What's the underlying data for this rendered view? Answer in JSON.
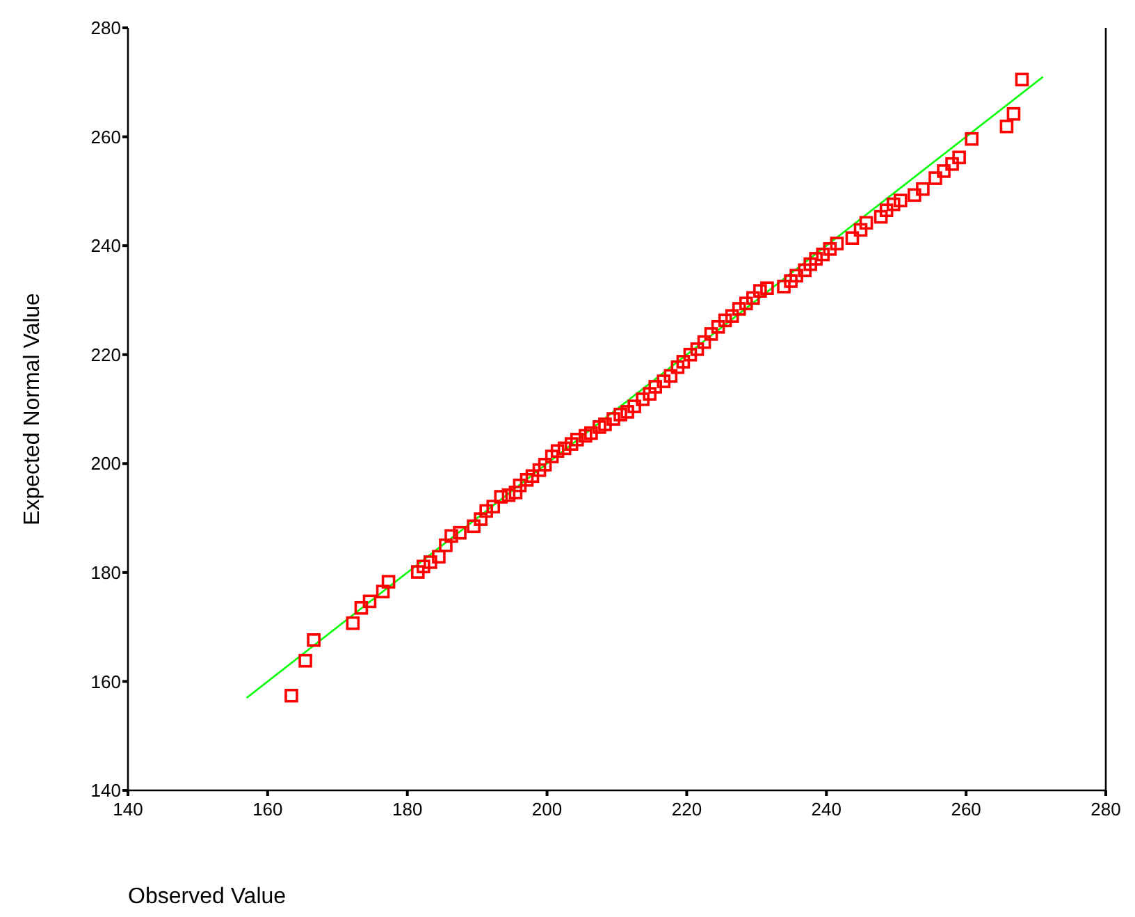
{
  "chart_data": {
    "type": "scatter",
    "xlabel": "Observed Value",
    "ylabel": "Expected Normal Value",
    "xlim": [
      140,
      280
    ],
    "ylim": [
      140,
      280
    ],
    "xticks": [
      140,
      160,
      180,
      200,
      220,
      240,
      260,
      280
    ],
    "yticks": [
      140,
      160,
      180,
      200,
      220,
      240,
      260,
      280
    ],
    "grid": false,
    "legend": false,
    "series": [
      {
        "type": "line",
        "color": "#00ff00",
        "marker": "none",
        "x": [
          157,
          271
        ],
        "values": [
          157,
          271
        ]
      },
      {
        "color": "#ff0000",
        "marker": "square",
        "x": [
          163.4,
          165.4,
          166.6,
          172.2,
          173.4,
          174.6,
          176.5,
          177.3,
          181.5,
          182.3,
          183.3,
          184.5,
          185.5,
          186.3,
          187.5,
          189.5,
          190.5,
          191.3,
          192.3,
          193.4,
          194.5,
          195.5,
          196.1,
          197.1,
          197.9,
          198.9,
          199.7,
          200.7,
          201.5,
          202.5,
          203.5,
          204.3,
          205.5,
          206.3,
          207.5,
          208.3,
          209.5,
          210.5,
          211.5,
          212.5,
          213.7,
          214.7,
          215.5,
          216.7,
          217.7,
          218.7,
          219.5,
          220.5,
          221.5,
          222.5,
          223.5,
          224.5,
          225.5,
          226.5,
          227.5,
          228.5,
          229.5,
          230.5,
          231.5,
          233.9,
          234.9,
          235.7,
          236.9,
          237.7,
          238.5,
          239.5,
          240.5,
          241.5,
          243.7,
          244.9,
          245.7,
          247.8,
          248.6,
          249.6,
          250.6,
          252.6,
          253.8,
          255.6,
          256.8,
          258.0,
          259.0,
          260.8,
          265.8,
          266.8,
          268.0
        ],
        "values": [
          157.4,
          163.8,
          167.6,
          170.7,
          173.5,
          174.7,
          176.5,
          178.3,
          180.1,
          181.1,
          181.9,
          182.9,
          185.0,
          186.7,
          187.3,
          188.5,
          189.8,
          191.3,
          192.1,
          193.9,
          194.2,
          194.7,
          196.0,
          197.0,
          197.7,
          198.8,
          199.8,
          201.3,
          202.3,
          202.8,
          203.6,
          204.4,
          205.1,
          205.6,
          206.7,
          207.2,
          208.2,
          209.0,
          209.5,
          210.5,
          211.8,
          212.8,
          214.1,
          215.1,
          216.1,
          217.7,
          218.7,
          220.0,
          221.0,
          222.3,
          223.8,
          225.1,
          226.3,
          227.1,
          228.4,
          229.4,
          230.4,
          231.7,
          232.2,
          232.5,
          233.5,
          234.5,
          235.5,
          236.6,
          237.6,
          238.4,
          239.4,
          240.4,
          241.4,
          242.9,
          244.2,
          245.3,
          246.5,
          247.6,
          248.3,
          249.3,
          250.4,
          252.4,
          253.7,
          255.0,
          256.2,
          259.6,
          261.9,
          264.2,
          270.5
        ]
      }
    ]
  }
}
